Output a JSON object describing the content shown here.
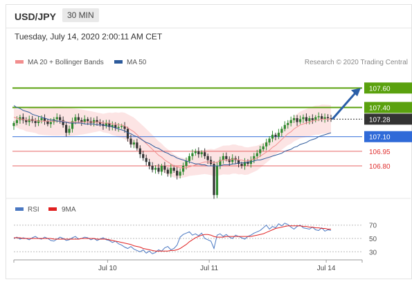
{
  "header": {
    "symbol": "USD/JPY",
    "timeframe": "30 MIN",
    "datetime": "Tuesday, July 14, 2020 2:00:11 AM CET"
  },
  "credit": "Research © 2020 Trading Central",
  "legend_main": [
    {
      "label": "MA 20 + Bollinger Bands",
      "color": "#f28e8e"
    },
    {
      "label": "MA 50",
      "color": "#2c5a9b"
    }
  ],
  "legend_rsi": [
    {
      "label": "RSI",
      "color": "#4a78c2"
    },
    {
      "label": "9MA",
      "color": "#e02020"
    }
  ],
  "chart_data": [
    {
      "type": "candlestick",
      "title": "USD/JPY",
      "y_range": [
        106.48,
        107.78
      ],
      "x_ticks": [
        "Jul 10",
        "Jul 11",
        "Jul 14"
      ],
      "levels": [
        {
          "value": 107.6,
          "label": "107.60",
          "color": "#5aa10e",
          "kind": "resistance"
        },
        {
          "value": 107.4,
          "label": "107.40",
          "color": "#5aa10e",
          "kind": "resistance"
        },
        {
          "value": 107.28,
          "label": "107.28",
          "color": "#333333",
          "kind": "last price"
        },
        {
          "value": 107.1,
          "label": "107.10",
          "color": "#2f6ad8",
          "kind": "pivot"
        },
        {
          "value": 106.95,
          "label": "106.95",
          "color": "#e03030",
          "kind": "support"
        },
        {
          "value": 106.8,
          "label": "106.80",
          "color": "#e03030",
          "kind": "support"
        }
      ],
      "close": [
        107.24,
        107.27,
        107.3,
        107.27,
        107.25,
        107.28,
        107.26,
        107.24,
        107.27,
        107.29,
        107.26,
        107.23,
        107.25,
        107.28,
        107.3,
        107.27,
        107.22,
        107.14,
        107.18,
        107.26,
        107.3,
        107.27,
        107.25,
        107.28,
        107.26,
        107.24,
        107.27,
        107.25,
        107.23,
        107.21,
        107.24,
        107.2,
        107.22,
        107.19,
        107.2,
        107.21,
        107.18,
        107.08,
        107.02,
        107.04,
        106.98,
        106.92,
        106.88,
        106.84,
        106.8,
        106.76,
        106.78,
        106.74,
        106.8,
        106.76,
        106.72,
        106.78,
        106.75,
        106.7,
        106.74,
        106.8,
        106.85,
        106.9,
        106.93,
        106.95,
        106.92,
        106.94,
        106.9,
        106.86,
        106.82,
        106.5,
        106.8,
        106.86,
        106.9,
        106.87,
        106.84,
        106.88,
        106.86,
        106.82,
        106.8,
        106.84,
        106.82,
        106.86,
        106.9,
        106.93,
        106.97,
        107.0,
        107.04,
        107.08,
        107.12,
        107.1,
        107.14,
        107.18,
        107.22,
        107.24,
        107.27,
        107.29,
        107.25,
        107.28,
        107.3,
        107.26,
        107.29,
        107.27,
        107.3,
        107.31,
        107.28,
        107.3,
        107.29,
        107.28
      ],
      "ma20": [
        107.3,
        107.29,
        107.28,
        107.28,
        107.27,
        107.27,
        107.27,
        107.27,
        107.26,
        107.26,
        107.26,
        107.26,
        107.26,
        107.26,
        107.26,
        107.26,
        107.26,
        107.25,
        107.25,
        107.25,
        107.25,
        107.25,
        107.25,
        107.25,
        107.25,
        107.25,
        107.25,
        107.25,
        107.25,
        107.24,
        107.24,
        107.24,
        107.23,
        107.23,
        107.22,
        107.22,
        107.21,
        107.19,
        107.17,
        107.15,
        107.12,
        107.09,
        107.06,
        107.03,
        107.0,
        106.97,
        106.94,
        106.91,
        106.89,
        106.86,
        106.84,
        106.82,
        106.8,
        106.79,
        106.78,
        106.78,
        106.78,
        106.79,
        106.8,
        106.81,
        106.82,
        106.83,
        106.84,
        106.84,
        106.84,
        106.83,
        106.84,
        106.85,
        106.86,
        106.86,
        106.86,
        106.87,
        106.87,
        106.86,
        106.86,
        106.85,
        106.85,
        106.86,
        106.87,
        106.88,
        106.9,
        106.92,
        106.94,
        106.96,
        106.99,
        107.01,
        107.04,
        107.07,
        107.1,
        107.13,
        107.15,
        107.18,
        107.2,
        107.22,
        107.23,
        107.24,
        107.25,
        107.26,
        107.27,
        107.27,
        107.28,
        107.28,
        107.28,
        107.28
      ],
      "ma50": [
        107.42,
        107.4,
        107.39,
        107.37,
        107.36,
        107.35,
        107.33,
        107.32,
        107.31,
        107.3,
        107.29,
        107.28,
        107.27,
        107.27,
        107.26,
        107.26,
        107.25,
        107.25,
        107.24,
        107.24,
        107.24,
        107.24,
        107.24,
        107.23,
        107.23,
        107.23,
        107.23,
        107.22,
        107.22,
        107.22,
        107.21,
        107.21,
        107.2,
        107.19,
        107.18,
        107.17,
        107.16,
        107.14,
        107.13,
        107.11,
        107.1,
        107.08,
        107.06,
        107.04,
        107.03,
        107.01,
        106.99,
        106.98,
        106.96,
        106.94,
        106.93,
        106.91,
        106.9,
        106.88,
        106.87,
        106.86,
        106.85,
        106.84,
        106.83,
        106.82,
        106.82,
        106.81,
        106.81,
        106.8,
        106.8,
        106.8,
        106.8,
        106.8,
        106.81,
        106.81,
        106.81,
        106.82,
        106.82,
        106.83,
        106.83,
        106.83,
        106.84,
        106.84,
        106.85,
        106.86,
        106.86,
        106.87,
        106.88,
        106.89,
        106.9,
        106.91,
        106.92,
        106.93,
        106.95,
        106.96,
        106.97,
        106.99,
        107.0,
        107.02,
        107.03,
        107.04,
        107.06,
        107.07,
        107.08,
        107.1,
        107.11,
        107.12,
        107.13,
        107.14
      ],
      "projection": {
        "from": 107.28,
        "to": 107.6
      }
    },
    {
      "type": "line",
      "title": "RSI",
      "y_range": [
        22,
        78
      ],
      "y_ticks": [
        70,
        50,
        30
      ],
      "rsi": [
        50,
        52,
        49,
        51,
        50,
        48,
        51,
        53,
        50,
        49,
        52,
        50,
        47,
        46,
        49,
        52,
        50,
        47,
        48,
        51,
        53,
        49,
        50,
        52,
        51,
        48,
        50,
        47,
        49,
        51,
        48,
        47,
        44,
        46,
        42,
        40,
        37,
        35,
        38,
        34,
        32,
        30,
        33,
        28,
        31,
        27,
        29,
        33,
        31,
        36,
        38,
        33,
        35,
        40,
        52,
        56,
        58,
        60,
        55,
        57,
        54,
        58,
        50,
        48,
        46,
        35,
        55,
        57,
        53,
        56,
        52,
        50,
        55,
        53,
        51,
        49,
        53,
        55,
        58,
        60,
        62,
        66,
        70,
        64,
        68,
        66,
        72,
        69,
        73,
        71,
        67,
        64,
        68,
        70,
        66,
        65,
        64,
        67,
        63,
        62,
        66,
        61,
        63,
        62
      ],
      "ma9": [
        51,
        51,
        51,
        50,
        50,
        50,
        50,
        50,
        50,
        50,
        50,
        50,
        50,
        49,
        49,
        49,
        49,
        49,
        49,
        49,
        49,
        49,
        50,
        50,
        50,
        50,
        50,
        49,
        49,
        49,
        49,
        48,
        47,
        46,
        45,
        44,
        43,
        42,
        41,
        39,
        38,
        37,
        35,
        34,
        33,
        32,
        31,
        31,
        31,
        31,
        31,
        32,
        32,
        33,
        35,
        38,
        41,
        45,
        48,
        51,
        53,
        55,
        56,
        56,
        55,
        53,
        52,
        52,
        52,
        53,
        53,
        53,
        53,
        53,
        53,
        53,
        53,
        53,
        54,
        55,
        56,
        57,
        59,
        61,
        63,
        65,
        66,
        67,
        68,
        69,
        69,
        69,
        69,
        69,
        68,
        68,
        67,
        67,
        66,
        66,
        65,
        65,
        64,
        64
      ]
    }
  ]
}
